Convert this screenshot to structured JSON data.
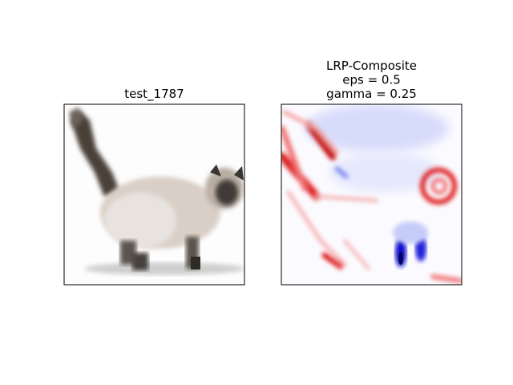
{
  "panels": [
    {
      "title": [
        "test_1787"
      ]
    },
    {
      "title": [
        "LRP-Composite",
        "eps = 0.5",
        "gamma = 0.25"
      ]
    }
  ]
}
